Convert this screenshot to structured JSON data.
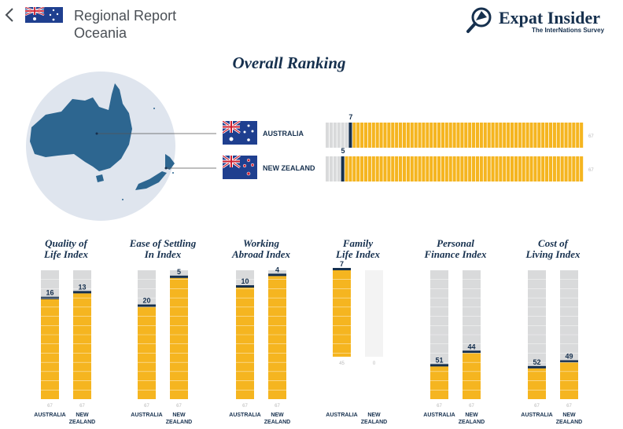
{
  "header": {
    "title_line1": "Regional Report",
    "title_line2": "Oceania",
    "logo_main": "Expat Insider",
    "logo_sub": "The InterNations Survey",
    "back_icon": "chevron-left-icon"
  },
  "colors": {
    "navy": "#16304e",
    "gold": "#f5b520",
    "grey": "#d9dadb",
    "map_fill": "#2d6690",
    "map_circle": "#dfe5ee"
  },
  "chart_data": [
    {
      "type": "bar",
      "title": "Overall Ranking",
      "total": 67,
      "series": [
        {
          "name": "AUSTRALIA",
          "rank": 7,
          "total_label": "67"
        },
        {
          "name": "NEW ZEALAND",
          "rank": 5,
          "total_label": "67"
        }
      ]
    },
    {
      "type": "bar",
      "categories": [
        "AUSTRALIA",
        "NEW ZEALAND"
      ],
      "total": 67,
      "indices": [
        {
          "title": "Quality of Life Index",
          "line1": "Quality of",
          "line2": "Life Index",
          "values": [
            16,
            13
          ],
          "totals": [
            "67",
            "67"
          ]
        },
        {
          "title": "Ease of Settling In Index",
          "line1": "Ease of Settling",
          "line2": "In Index",
          "values": [
            20,
            5
          ],
          "totals": [
            "67",
            "67"
          ]
        },
        {
          "title": "Working Abroad Index",
          "line1": "Working",
          "line2": "Abroad Index",
          "values": [
            10,
            4
          ],
          "totals": [
            "67",
            "67"
          ]
        },
        {
          "title": "Family Life Index",
          "line1": "Family",
          "line2": "Life Index",
          "values": [
            7,
            null
          ],
          "totals": [
            "45",
            "0"
          ],
          "short": true
        },
        {
          "title": "Personal Finance Index",
          "line1": "Personal",
          "line2": "Finance Index",
          "values": [
            51,
            44
          ],
          "totals": [
            "67",
            "67"
          ]
        },
        {
          "title": "Cost of Living Index",
          "line1": "Cost of",
          "line2": "Living Index",
          "values": [
            52,
            49
          ],
          "totals": [
            "67",
            "67"
          ]
        }
      ]
    }
  ],
  "labels": {
    "australia": "AUSTRALIA",
    "new": "NEW",
    "zealand": "ZEALAND",
    "new_zealand": "NEW ZEALAND"
  }
}
